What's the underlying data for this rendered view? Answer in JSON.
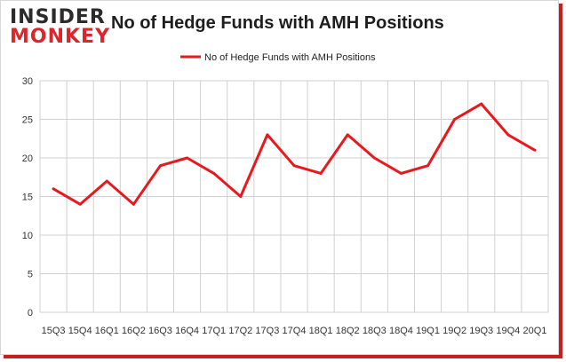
{
  "logo": {
    "line1": "INSIDER",
    "line2": "MONKEY"
  },
  "colors": {
    "series": "#e8191c",
    "brand_red": "#d8282b",
    "grid": "#d0d0d0"
  },
  "chart_data": {
    "type": "line",
    "title": "No of Hedge Funds with AMH Positions",
    "xlabel": "",
    "ylabel": "",
    "ylim": [
      0,
      30
    ],
    "yticks": [
      0,
      5,
      10,
      15,
      20,
      25,
      30
    ],
    "grid": true,
    "legend_position": "top-center",
    "categories": [
      "15Q3",
      "15Q4",
      "16Q1",
      "16Q2",
      "16Q3",
      "16Q4",
      "17Q1",
      "17Q2",
      "17Q3",
      "17Q4",
      "18Q1",
      "18Q2",
      "18Q3",
      "18Q4",
      "19Q1",
      "19Q2",
      "19Q3",
      "19Q4",
      "20Q1"
    ],
    "series": [
      {
        "name": "No of Hedge Funds with AMH Positions",
        "values": [
          16,
          14,
          17,
          14,
          19,
          20,
          18,
          15,
          23,
          19,
          18,
          23,
          20,
          18,
          19,
          25,
          27,
          23,
          21
        ]
      }
    ]
  }
}
